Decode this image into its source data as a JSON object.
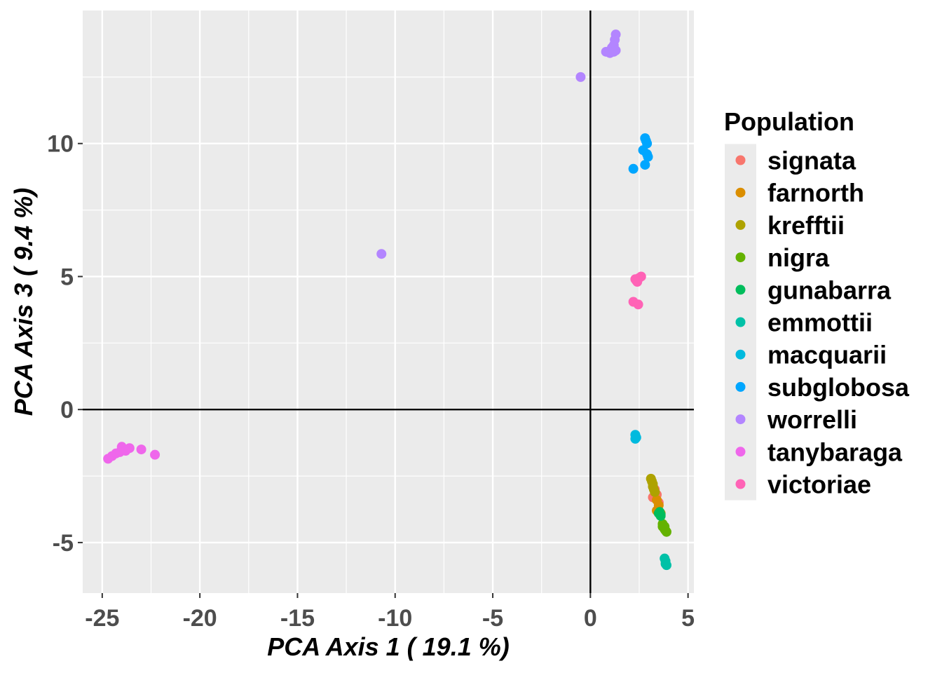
{
  "chart_data": {
    "type": "scatter",
    "xlabel": "PCA Axis 1 ( 19.1 %)",
    "ylabel": "PCA Axis 3 ( 9.4 %)",
    "xlim": [
      -26.0,
      5.3
    ],
    "ylim": [
      -6.9,
      15.0
    ],
    "x_ticks": [
      -25,
      -20,
      -15,
      -10,
      -5,
      0,
      5
    ],
    "y_ticks": [
      -5,
      0,
      5,
      10
    ],
    "reference_lines": {
      "x": 0,
      "y": 0
    },
    "grid": true,
    "legend": {
      "title": "Population",
      "position": "right"
    },
    "series": [
      {
        "name": "signata",
        "color": "#F8766D",
        "points": [
          [
            3.3,
            -3.0
          ],
          [
            3.4,
            -3.2
          ],
          [
            3.2,
            -3.3
          ],
          [
            3.5,
            -3.5
          ]
        ]
      },
      {
        "name": "farnorth",
        "color": "#DB8E00",
        "points": [
          [
            3.3,
            -3.1
          ],
          [
            3.4,
            -3.4
          ],
          [
            3.5,
            -3.6
          ],
          [
            3.4,
            -3.8
          ],
          [
            3.6,
            -3.9
          ]
        ]
      },
      {
        "name": "krefftii",
        "color": "#AEA200",
        "points": [
          [
            3.1,
            -2.6
          ],
          [
            3.15,
            -2.7
          ],
          [
            3.2,
            -2.8
          ],
          [
            3.2,
            -2.9
          ],
          [
            3.25,
            -3.0
          ],
          [
            3.3,
            -3.1
          ]
        ]
      },
      {
        "name": "nigra",
        "color": "#64B200",
        "points": [
          [
            3.7,
            -4.3
          ],
          [
            3.8,
            -4.4
          ],
          [
            3.8,
            -4.5
          ],
          [
            3.9,
            -4.6
          ],
          [
            3.7,
            -4.4
          ],
          [
            3.85,
            -4.55
          ]
        ]
      },
      {
        "name": "gunabarra",
        "color": "#00BD5C",
        "points": [
          [
            3.5,
            -3.9
          ],
          [
            3.6,
            -4.0
          ],
          [
            3.55,
            -3.85
          ],
          [
            3.6,
            -3.95
          ]
        ]
      },
      {
        "name": "emmottii",
        "color": "#00C1A7",
        "points": [
          [
            3.8,
            -5.6
          ],
          [
            3.85,
            -5.7
          ],
          [
            3.9,
            -5.85
          ],
          [
            3.85,
            -5.8
          ]
        ]
      },
      {
        "name": "macquarii",
        "color": "#00BADE",
        "points": [
          [
            2.3,
            -0.95
          ],
          [
            2.35,
            -1.05
          ],
          [
            2.3,
            -1.1
          ]
        ]
      },
      {
        "name": "subglobosa",
        "color": "#00A6FF",
        "points": [
          [
            2.8,
            10.2
          ],
          [
            2.85,
            10.1
          ],
          [
            2.9,
            10.0
          ],
          [
            2.7,
            9.75
          ],
          [
            2.9,
            9.6
          ],
          [
            2.95,
            9.5
          ],
          [
            2.8,
            9.2
          ],
          [
            2.2,
            9.05
          ]
        ]
      },
      {
        "name": "worrelli",
        "color": "#B385FF",
        "points": [
          [
            1.3,
            14.1
          ],
          [
            1.25,
            13.9
          ],
          [
            1.2,
            13.7
          ],
          [
            1.1,
            13.6
          ],
          [
            1.3,
            13.5
          ],
          [
            0.8,
            13.45
          ],
          [
            1.0,
            13.4
          ],
          [
            1.2,
            13.45
          ],
          [
            -0.5,
            12.5
          ],
          [
            -10.7,
            5.85
          ]
        ]
      },
      {
        "name": "tanybaraga",
        "color": "#EF67EB",
        "points": [
          [
            -24.7,
            -1.85
          ],
          [
            -24.5,
            -1.75
          ],
          [
            -24.3,
            -1.65
          ],
          [
            -24.1,
            -1.6
          ],
          [
            -24.0,
            -1.4
          ],
          [
            -23.8,
            -1.55
          ],
          [
            -23.6,
            -1.45
          ],
          [
            -23.0,
            -1.5
          ],
          [
            -22.3,
            -1.7
          ]
        ]
      },
      {
        "name": "victoriae",
        "color": "#FF63B6",
        "points": [
          [
            2.3,
            4.9
          ],
          [
            2.4,
            4.8
          ],
          [
            2.5,
            4.95
          ],
          [
            2.6,
            5.0
          ],
          [
            2.2,
            4.05
          ],
          [
            2.45,
            3.95
          ],
          [
            2.35,
            4.85
          ]
        ]
      }
    ]
  }
}
